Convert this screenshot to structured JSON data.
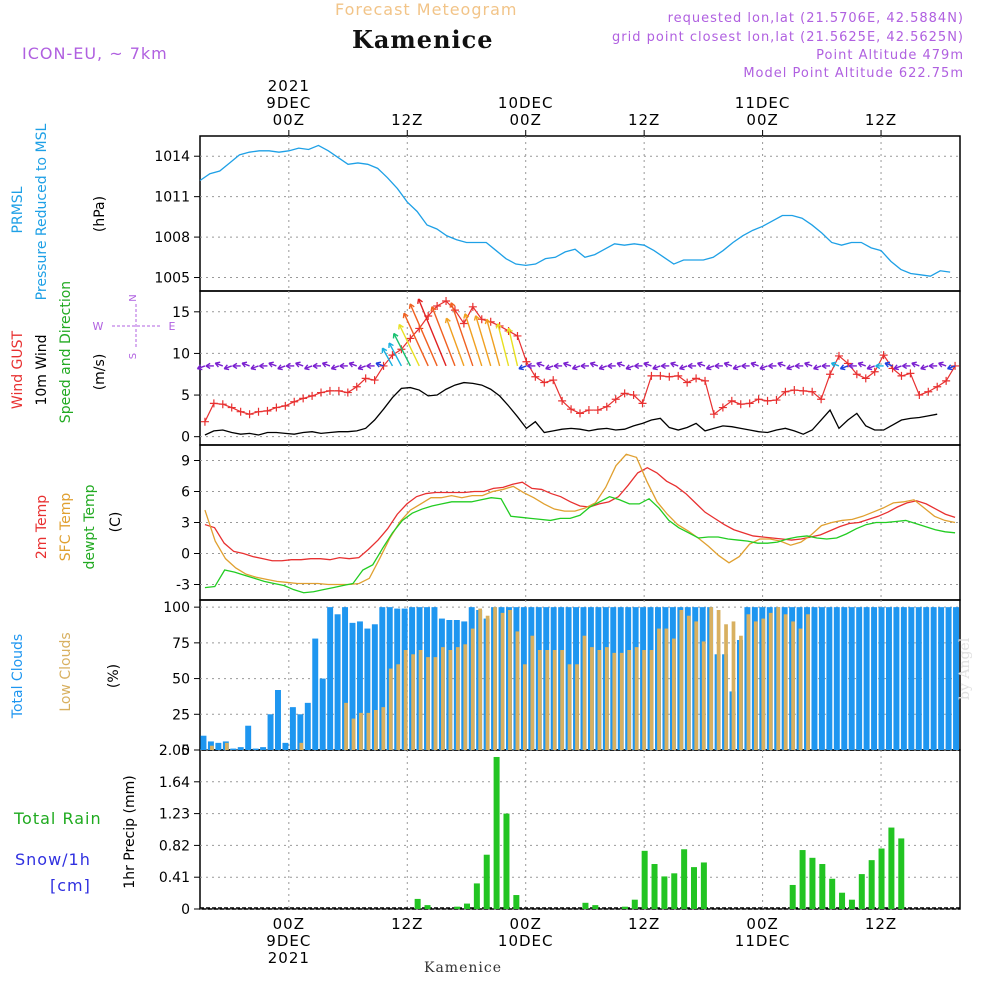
{
  "header": {
    "subtitle": "Forecast Meteogram",
    "title": "Kamenice",
    "model": "ICON-EU, ~ 7km",
    "requested": "requested lon,lat (21.5706E, 42.5884N)",
    "grid_point": "grid point closest lon,lat (21.5625E, 42.5625N)",
    "point_altitude": "Point Altitude 479m",
    "model_altitude": "Model Point Altitude 622.75m"
  },
  "footer": {
    "location": "Kamenice",
    "watermark": "by Angel"
  },
  "time_axis": {
    "top": [
      [
        "2021",
        "9DEC",
        "00Z"
      ],
      [
        "",
        "",
        "12Z"
      ],
      [
        "",
        "10DEC",
        "00Z"
      ],
      [
        "",
        "",
        "12Z"
      ],
      [
        "",
        "11DEC",
        "00Z"
      ],
      [
        "",
        "",
        "12Z"
      ]
    ],
    "bottom": [
      [
        "00Z",
        "9DEC",
        "2021"
      ],
      [
        "12Z",
        "",
        ""
      ],
      [
        "00Z",
        "10DEC",
        ""
      ],
      [
        "12Z",
        "",
        ""
      ],
      [
        "00Z",
        "11DEC",
        ""
      ],
      [
        "12Z",
        "",
        ""
      ]
    ],
    "hours_offset_start": -9,
    "hours_offset_end": 55
  },
  "colors": {
    "pressure": "#1ea0e6",
    "gust": "#e83030",
    "wind": "#000000",
    "temp2m": "#e83030",
    "sfctemp": "#e0a030",
    "dewpt": "#22cc22",
    "total_clouds": "#1e96f0",
    "low_clouds": "#d8b060",
    "rain": "#22c422",
    "label_purple": "#b060e0"
  },
  "panels": {
    "pressure": {
      "labels": [
        "PRMSL",
        "Pressure Reduced to MSL",
        "(hPa)"
      ],
      "ticks": [
        "1014",
        "1011",
        "1008",
        "1005"
      ]
    },
    "wind": {
      "labels": [
        "Wind GUST",
        "10m Wind",
        "Speed and Direction",
        "(m/s)"
      ],
      "ticks": [
        "15",
        "10",
        "5",
        "0"
      ],
      "compass": {
        "n": "N",
        "s": "S",
        "w": "W",
        "e": "E"
      }
    },
    "temp": {
      "labels": [
        "2m Temp",
        "SFC Temp",
        "dewpt Temp",
        "(C)"
      ],
      "ticks": [
        "9",
        "6",
        "3",
        "0",
        "-3"
      ]
    },
    "clouds": {
      "labels": [
        "Total Clouds",
        "Low Clouds",
        "(%)"
      ],
      "ticks": [
        "100",
        "75",
        "50",
        "25",
        "0"
      ]
    },
    "precip": {
      "labels": [
        "1hr Precip (mm)"
      ],
      "ticks": [
        "2.05",
        "1.64",
        "1.23",
        "0.82",
        "0.41",
        "0"
      ],
      "rain_label": "Total  Rain",
      "snow_label": [
        "Snow/1h",
        "[cm]"
      ]
    }
  },
  "chart_data": [
    {
      "type": "line",
      "title": "PRMSL Pressure Reduced to MSL",
      "ylabel": "(hPa)",
      "ylim": [
        1004,
        1015.5
      ],
      "x_unit": "hours since 9DEC 00Z",
      "series": [
        {
          "name": "PRMSL",
          "values": [
            1012.2,
            1012.7,
            1012.9,
            1013.5,
            1014.1,
            1014.3,
            1014.4,
            1014.4,
            1014.3,
            1014.4,
            1014.6,
            1014.5,
            1014.8,
            1014.4,
            1013.9,
            1013.4,
            1013.5,
            1013.4,
            1013.1,
            1012.4,
            1011.6,
            1010.6,
            1009.9,
            1008.9,
            1008.6,
            1008.1,
            1007.8,
            1007.6,
            1007.6,
            1007.6,
            1007.0,
            1006.4,
            1006.0,
            1005.9,
            1006.0,
            1006.4,
            1006.5,
            1006.9,
            1007.1,
            1006.5,
            1006.7,
            1007.1,
            1007.5,
            1007.4,
            1007.5,
            1007.4,
            1007.0,
            1006.5,
            1006.0,
            1006.3,
            1006.3,
            1006.3,
            1006.5,
            1007.0,
            1007.6,
            1008.1,
            1008.5,
            1008.8,
            1009.2,
            1009.6,
            1009.6,
            1009.4,
            1008.9,
            1008.3,
            1007.6,
            1007.4,
            1007.6,
            1007.6,
            1007.2,
            1007.0,
            1006.2,
            1005.6,
            1005.3,
            1005.2,
            1005.1,
            1005.5,
            1005.4
          ]
        }
      ],
      "x": [
        -9,
        -8,
        -7,
        -6,
        -5,
        -4,
        -3,
        -2,
        -1,
        0,
        1,
        2,
        3,
        4,
        5,
        6,
        7,
        8,
        9,
        10,
        11,
        12,
        13,
        14,
        15,
        16,
        17,
        18,
        19,
        20,
        21,
        22,
        23,
        24,
        25,
        26,
        27,
        28,
        29,
        30,
        31,
        32,
        33,
        34,
        35,
        36,
        37,
        38,
        39,
        40,
        41,
        42,
        43,
        44,
        45,
        46,
        47,
        48,
        49,
        50,
        51,
        52,
        53,
        54,
        55,
        56,
        57,
        58,
        59,
        60,
        61,
        62,
        63,
        64,
        65,
        66,
        67
      ]
    },
    {
      "type": "line",
      "title": "Wind GUST / 10m Wind Speed and Direction",
      "ylabel": "(m/s)",
      "ylim": [
        -1,
        17.5
      ],
      "series": [
        {
          "name": "Wind GUST",
          "values": [
            1.8,
            4.0,
            3.9,
            3.5,
            3.0,
            2.7,
            3.0,
            3.1,
            3.5,
            3.7,
            4.2,
            4.6,
            4.9,
            5.3,
            5.5,
            5.5,
            5.3,
            6.0,
            7.0,
            6.8,
            8.5,
            9.8,
            10.5,
            11.8,
            13.0,
            14.5,
            15.7,
            16.3,
            15.2,
            13.6,
            15.6,
            14.1,
            13.8,
            13.3,
            12.7,
            12.1,
            9.0,
            7.2,
            6.5,
            6.8,
            4.3,
            3.3,
            2.8,
            3.2,
            3.2,
            3.6,
            4.5,
            5.2,
            5.0,
            4.0,
            7.3,
            7.3,
            7.2,
            7.3,
            6.5,
            7.0,
            6.7,
            2.7,
            3.5,
            4.3,
            3.9,
            4.0,
            4.5,
            4.3,
            4.4,
            5.4,
            5.6,
            5.5,
            5.4,
            4.5,
            7.5,
            9.7,
            8.8,
            7.5,
            7.0,
            7.8,
            9.8,
            8.2,
            7.3,
            7.6,
            5.0,
            5.4,
            6.0,
            6.7,
            8.5
          ]
        },
        {
          "name": "10m Wind",
          "values": [
            0.2,
            0.7,
            0.8,
            0.5,
            0.3,
            0.4,
            0.2,
            0.5,
            0.5,
            0.4,
            0.3,
            0.5,
            0.6,
            0.4,
            0.5,
            0.6,
            0.6,
            0.7,
            1.0,
            2.0,
            3.3,
            4.7,
            5.8,
            5.9,
            5.6,
            4.9,
            5.0,
            5.7,
            6.2,
            6.5,
            6.4,
            6.2,
            5.7,
            4.9,
            3.7,
            2.4,
            1.0,
            1.8,
            0.5,
            0.7,
            0.9,
            1.0,
            0.9,
            0.7,
            0.9,
            1.0,
            0.8,
            0.9,
            1.3,
            1.6,
            2.0,
            2.2,
            1.1,
            0.8,
            1.1,
            1.6,
            0.7,
            1.0,
            1.3,
            1.2,
            1.0,
            0.8,
            0.6,
            0.5,
            0.8,
            1.0,
            0.7,
            0.3,
            0.8,
            2.0,
            3.2,
            1.0,
            2.0,
            2.8,
            1.3,
            0.8,
            0.8,
            1.4,
            2.0,
            2.2,
            2.3,
            2.5,
            2.7
          ]
        }
      ]
    },
    {
      "type": "line",
      "title": "2m Temp / SFC Temp / dewpt Temp",
      "ylabel": "(C)",
      "ylim": [
        -4.5,
        10.5
      ],
      "series": [
        {
          "name": "2m Temp",
          "values": [
            2.8,
            2.5,
            1.0,
            0.2,
            0.0,
            -0.3,
            -0.5,
            -0.7,
            -0.7,
            -0.6,
            -0.6,
            -0.5,
            -0.5,
            -0.6,
            -0.4,
            -0.5,
            -0.4,
            0.4,
            1.3,
            2.4,
            3.8,
            4.8,
            5.5,
            5.8,
            5.9,
            5.9,
            5.9,
            5.9,
            6.0,
            6.0,
            6.3,
            6.4,
            6.7,
            6.9,
            6.3,
            6.2,
            5.8,
            5.5,
            5.0,
            4.6,
            4.5,
            4.8,
            5.0,
            5.5,
            6.6,
            7.8,
            8.3,
            7.8,
            7.0,
            6.5,
            5.8,
            4.9,
            4.0,
            3.4,
            2.8,
            2.3,
            2.0,
            1.7,
            1.6,
            1.5,
            1.4,
            1.3,
            1.4,
            1.6,
            1.8,
            2.2,
            2.6,
            2.9,
            3.0,
            3.3,
            3.6,
            4.0,
            4.5,
            4.9,
            5.1,
            4.8,
            4.3,
            3.8,
            3.5
          ]
        },
        {
          "name": "SFC Temp",
          "values": [
            4.2,
            1.2,
            -0.5,
            -1.4,
            -2.0,
            -2.3,
            -2.5,
            -2.7,
            -2.8,
            -2.9,
            -2.9,
            -2.9,
            -3.0,
            -3.0,
            -3.0,
            -2.9,
            -2.4,
            -0.5,
            1.5,
            3.1,
            4.2,
            4.8,
            5.4,
            5.4,
            5.6,
            5.4,
            5.6,
            5.6,
            6.0,
            6.2,
            6.5,
            5.9,
            5.4,
            4.8,
            4.3,
            4.1,
            4.1,
            4.4,
            4.9,
            6.4,
            8.5,
            9.6,
            9.3,
            7.0,
            5.0,
            3.8,
            2.8,
            2.2,
            1.5,
            0.7,
            -0.2,
            -0.9,
            -0.3,
            0.9,
            1.4,
            1.4,
            1.2,
            0.8,
            1.1,
            1.8,
            2.7,
            3.0,
            3.2,
            3.3,
            3.6,
            4.0,
            4.4,
            4.9,
            5.0,
            5.2,
            4.4,
            3.6,
            3.2,
            3.0
          ]
        },
        {
          "name": "dewpt Temp",
          "values": [
            -3.3,
            -3.2,
            -1.6,
            -1.8,
            -2.1,
            -2.4,
            -2.7,
            -2.9,
            -3.1,
            -3.5,
            -3.8,
            -3.7,
            -3.5,
            -3.3,
            -3.1,
            -2.9,
            -1.6,
            -1.1,
            0.5,
            2.0,
            3.2,
            3.9,
            4.3,
            4.6,
            4.8,
            5.0,
            5.0,
            5.0,
            5.2,
            5.4,
            5.3,
            3.6,
            3.5,
            3.4,
            3.3,
            3.2,
            3.4,
            3.4,
            3.7,
            4.5,
            5.0,
            5.5,
            5.2,
            4.8,
            4.8,
            5.3,
            4.4,
            3.2,
            2.5,
            2.0,
            1.5,
            1.6,
            1.6,
            1.4,
            1.3,
            1.2,
            1.0,
            1.0,
            1.1,
            1.4,
            1.6,
            1.7,
            1.5,
            1.4,
            1.5,
            1.9,
            2.4,
            2.8,
            3.0,
            3.0,
            3.1,
            3.2,
            2.9,
            2.6,
            2.3,
            2.1,
            2.0
          ]
        }
      ]
    },
    {
      "type": "bar",
      "title": "Total Clouds / Low Clouds",
      "ylabel": "(%)",
      "ylim": [
        0,
        105
      ],
      "series": [
        {
          "name": "Total Clouds",
          "values": [
            10,
            6,
            5,
            6,
            1,
            2,
            17,
            1,
            2,
            25,
            42,
            5,
            30,
            25,
            33,
            78,
            50,
            100,
            95,
            100,
            89,
            90,
            85,
            88,
            100,
            100,
            99,
            99,
            100,
            100,
            100,
            100,
            92,
            91,
            91,
            90,
            100,
            98,
            92,
            100,
            100,
            100,
            100,
            100,
            100,
            100,
            100,
            100,
            100,
            100,
            100,
            100,
            100,
            100,
            100,
            100,
            100,
            100,
            100,
            100,
            100,
            100,
            100,
            100,
            100,
            100,
            100,
            100,
            100,
            67,
            67,
            41,
            77,
            100,
            100,
            100,
            100,
            100,
            100,
            100,
            100,
            100,
            100,
            100,
            100,
            100,
            100,
            100,
            100,
            100,
            100,
            100,
            100,
            100,
            100,
            100,
            100,
            100,
            100,
            100,
            100,
            100
          ]
        },
        {
          "name": "Low Clouds",
          "values": [
            0,
            3,
            0,
            5,
            0,
            0,
            0,
            0,
            0,
            0,
            0,
            0,
            0,
            5,
            0,
            0,
            0,
            0,
            0,
            33,
            22,
            26,
            26,
            28,
            30,
            57,
            60,
            70,
            67,
            70,
            65,
            65,
            72,
            70,
            72,
            74,
            85,
            99,
            94,
            100,
            96,
            98,
            83,
            60,
            80,
            70,
            70,
            70,
            70,
            60,
            60,
            80,
            72,
            70,
            72,
            68,
            68,
            70,
            72,
            70,
            70,
            85,
            85,
            78,
            98,
            94,
            90,
            76,
            100,
            98,
            88,
            90,
            80,
            95,
            90,
            92,
            96,
            100,
            95,
            90,
            85,
            95
          ]
        }
      ]
    },
    {
      "type": "bar",
      "title": "1hr Precip",
      "ylabel": "1hr Precip (mm)",
      "ylim": [
        0,
        2.05
      ],
      "series": [
        {
          "name": "Total Rain",
          "x": [
            13,
            14,
            17,
            18,
            19,
            20,
            21,
            22,
            23,
            24,
            25,
            26,
            27,
            28,
            29,
            30,
            31,
            32,
            33,
            34,
            35,
            36,
            37,
            38,
            39,
            40,
            41,
            42,
            43,
            44,
            45,
            46,
            47,
            48,
            49,
            50,
            51,
            52,
            53,
            54,
            55,
            56,
            57,
            58,
            59,
            60,
            61,
            62,
            63,
            64,
            65,
            66,
            67
          ],
          "values": [
            0.13,
            0.05,
            0.03,
            0.07,
            0.33,
            0.7,
            1.96,
            1.23,
            0.18,
            0,
            0,
            0,
            0,
            0,
            0,
            0.08,
            0.05,
            0,
            0,
            0.03,
            0.12,
            0.75,
            0.58,
            0.42,
            0.46,
            0.77,
            0.54,
            0.6,
            0,
            0,
            0,
            0,
            0,
            0,
            0,
            0,
            0.31,
            0.76,
            0.66,
            0.58,
            0.39,
            0.21,
            0.12,
            0.45,
            0.63,
            0.78,
            1.05,
            0.91,
            0,
            0,
            0,
            0,
            0
          ]
        },
        {
          "name": "Snow/1h",
          "values": []
        }
      ]
    }
  ]
}
